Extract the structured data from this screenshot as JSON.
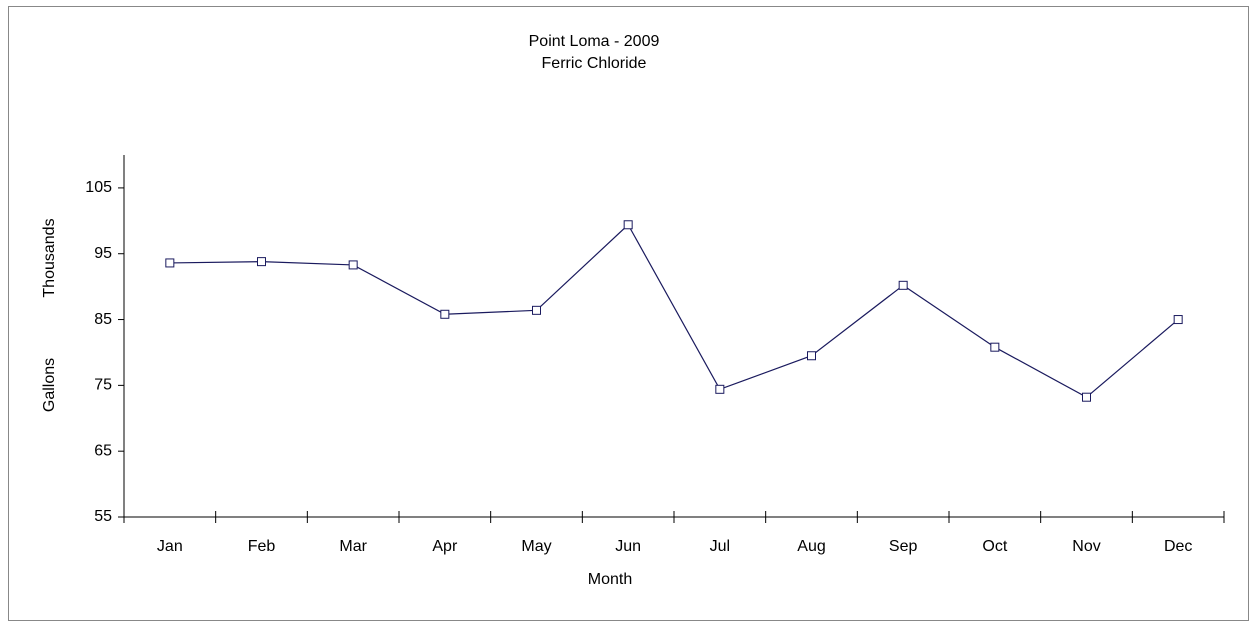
{
  "chart_data": {
    "type": "line",
    "title": "Point Loma - 2009",
    "subtitle": "Ferric Chloride",
    "xlabel": "Month",
    "ylabel": "Gallons",
    "ylabel_unit": "Thousands",
    "categories": [
      "Jan",
      "Feb",
      "Mar",
      "Apr",
      "May",
      "Jun",
      "Jul",
      "Aug",
      "Sep",
      "Oct",
      "Nov",
      "Dec"
    ],
    "series": [
      {
        "name": "Ferric Chloride",
        "color": "#1a1a5e",
        "values": [
          93.6,
          93.8,
          93.3,
          85.8,
          86.4,
          99.4,
          74.4,
          79.5,
          90.2,
          80.8,
          73.2,
          85.0
        ]
      }
    ],
    "ylim": [
      55,
      110
    ],
    "yticks": [
      55,
      65,
      75,
      85,
      95,
      105
    ],
    "grid": false
  }
}
